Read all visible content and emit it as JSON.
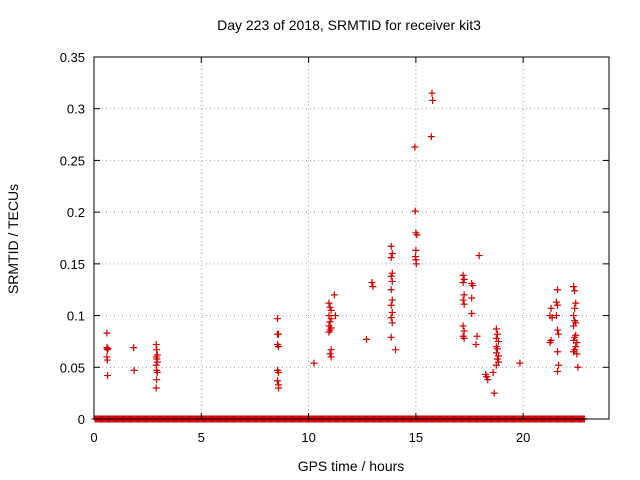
{
  "chart_data": {
    "type": "scatter",
    "title": "Day 223 of 2018, SRMTID for receiver kit3",
    "xlabel": "GPS time / hours",
    "ylabel": "SRMTID / TECUs",
    "xlim": [
      0,
      24
    ],
    "ylim": [
      0,
      0.35
    ],
    "xticks": [
      0,
      5,
      10,
      15,
      20
    ],
    "xtick_labels": [
      "0",
      "5",
      "10",
      "15",
      "20"
    ],
    "yticks": [
      0,
      0.05,
      0.1,
      0.15,
      0.2,
      0.25,
      0.3,
      0.35
    ],
    "ytick_labels": [
      "0",
      "0.05",
      "0.1",
      "0.15",
      "0.2",
      "0.25",
      "0.3",
      "0.35"
    ],
    "grid": true,
    "marker": "+",
    "color": "#d00000",
    "baseline_range_hours": [
      0.05,
      22.85
    ],
    "baseline_spacing_hours": 0.05,
    "series": [
      {
        "name": "SRMTID",
        "points": [
          [
            0.6,
            0.083
          ],
          [
            0.6,
            0.069
          ],
          [
            0.62,
            0.067
          ],
          [
            0.65,
            0.068
          ],
          [
            0.6,
            0.06
          ],
          [
            0.62,
            0.057
          ],
          [
            0.63,
            0.042
          ],
          [
            1.85,
            0.069
          ],
          [
            1.87,
            0.047
          ],
          [
            2.9,
            0.072
          ],
          [
            2.92,
            0.067
          ],
          [
            2.95,
            0.062
          ],
          [
            2.9,
            0.06
          ],
          [
            2.93,
            0.058
          ],
          [
            2.95,
            0.055
          ],
          [
            2.9,
            0.052
          ],
          [
            2.92,
            0.047
          ],
          [
            2.95,
            0.045
          ],
          [
            2.92,
            0.038
          ],
          [
            2.9,
            0.03
          ],
          [
            8.55,
            0.097
          ],
          [
            8.55,
            0.082
          ],
          [
            8.6,
            0.082
          ],
          [
            8.55,
            0.072
          ],
          [
            8.6,
            0.07
          ],
          [
            8.55,
            0.047
          ],
          [
            8.6,
            0.045
          ],
          [
            8.55,
            0.037
          ],
          [
            8.6,
            0.033
          ],
          [
            8.6,
            0.03
          ],
          [
            10.25,
            0.054
          ],
          [
            10.95,
            0.112
          ],
          [
            11.0,
            0.108
          ],
          [
            11.05,
            0.105
          ],
          [
            10.95,
            0.1
          ],
          [
            11.05,
            0.097
          ],
          [
            11.0,
            0.094
          ],
          [
            10.95,
            0.09
          ],
          [
            11.05,
            0.088
          ],
          [
            11.0,
            0.086
          ],
          [
            10.95,
            0.084
          ],
          [
            11.05,
            0.067
          ],
          [
            11.0,
            0.063
          ],
          [
            11.05,
            0.06
          ],
          [
            11.2,
            0.12
          ],
          [
            11.25,
            0.1
          ],
          [
            12.7,
            0.077
          ],
          [
            12.95,
            0.132
          ],
          [
            13.0,
            0.128
          ],
          [
            13.85,
            0.167
          ],
          [
            13.9,
            0.16
          ],
          [
            13.85,
            0.156
          ],
          [
            13.9,
            0.141
          ],
          [
            13.85,
            0.138
          ],
          [
            13.9,
            0.133
          ],
          [
            13.85,
            0.125
          ],
          [
            13.9,
            0.115
          ],
          [
            13.85,
            0.11
          ],
          [
            13.9,
            0.103
          ],
          [
            13.85,
            0.098
          ],
          [
            13.9,
            0.093
          ],
          [
            13.85,
            0.079
          ],
          [
            14.05,
            0.067
          ],
          [
            14.95,
            0.263
          ],
          [
            14.97,
            0.201
          ],
          [
            15.0,
            0.18
          ],
          [
            15.05,
            0.178
          ],
          [
            15.0,
            0.163
          ],
          [
            14.98,
            0.157
          ],
          [
            15.0,
            0.154
          ],
          [
            15.02,
            0.15
          ],
          [
            15.75,
            0.315
          ],
          [
            15.78,
            0.308
          ],
          [
            15.72,
            0.273
          ],
          [
            17.2,
            0.139
          ],
          [
            17.25,
            0.135
          ],
          [
            17.2,
            0.132
          ],
          [
            17.25,
            0.12
          ],
          [
            17.2,
            0.115
          ],
          [
            17.25,
            0.111
          ],
          [
            17.2,
            0.09
          ],
          [
            17.25,
            0.085
          ],
          [
            17.2,
            0.08
          ],
          [
            17.25,
            0.078
          ],
          [
            17.6,
            0.131
          ],
          [
            17.65,
            0.129
          ],
          [
            17.6,
            0.117
          ],
          [
            17.6,
            0.102
          ],
          [
            17.95,
            0.158
          ],
          [
            17.85,
            0.08
          ],
          [
            17.8,
            0.072
          ],
          [
            18.3,
            0.041
          ],
          [
            18.35,
            0.038
          ],
          [
            18.25,
            0.043
          ],
          [
            18.6,
            0.045
          ],
          [
            18.65,
            0.025
          ],
          [
            18.75,
            0.087
          ],
          [
            18.8,
            0.082
          ],
          [
            18.75,
            0.078
          ],
          [
            18.85,
            0.075
          ],
          [
            18.75,
            0.07
          ],
          [
            18.8,
            0.068
          ],
          [
            18.75,
            0.064
          ],
          [
            18.85,
            0.061
          ],
          [
            18.8,
            0.058
          ],
          [
            18.85,
            0.055
          ],
          [
            18.75,
            0.052
          ],
          [
            19.85,
            0.054
          ],
          [
            21.3,
            0.107
          ],
          [
            21.25,
            0.1
          ],
          [
            21.35,
            0.098
          ],
          [
            21.3,
            0.076
          ],
          [
            21.25,
            0.074
          ],
          [
            21.6,
            0.125
          ],
          [
            21.55,
            0.113
          ],
          [
            21.6,
            0.11
          ],
          [
            21.55,
            0.1
          ],
          [
            21.6,
            0.086
          ],
          [
            21.65,
            0.082
          ],
          [
            21.6,
            0.065
          ],
          [
            21.65,
            0.052
          ],
          [
            21.6,
            0.046
          ],
          [
            22.35,
            0.128
          ],
          [
            22.4,
            0.124
          ],
          [
            22.45,
            0.112
          ],
          [
            22.4,
            0.107
          ],
          [
            22.35,
            0.1
          ],
          [
            22.4,
            0.095
          ],
          [
            22.45,
            0.093
          ],
          [
            22.35,
            0.09
          ],
          [
            22.45,
            0.081
          ],
          [
            22.4,
            0.079
          ],
          [
            22.35,
            0.076
          ],
          [
            22.5,
            0.074
          ],
          [
            22.45,
            0.07
          ],
          [
            22.4,
            0.067
          ],
          [
            22.35,
            0.065
          ],
          [
            22.5,
            0.063
          ],
          [
            22.55,
            0.05
          ]
        ]
      }
    ]
  }
}
